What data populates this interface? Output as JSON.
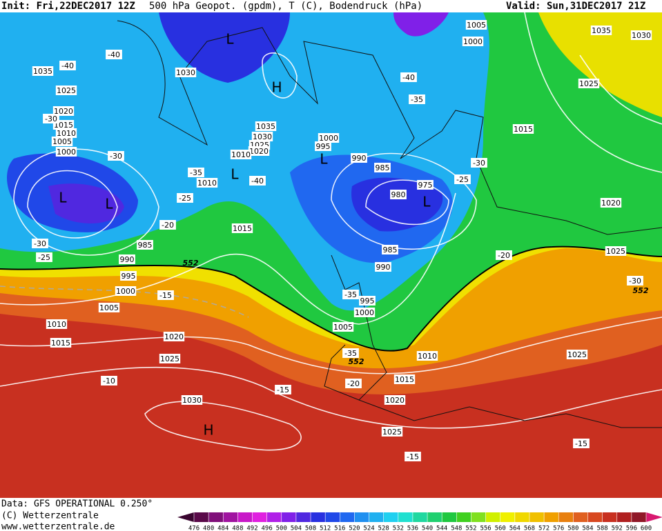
{
  "header": {
    "init": "Init: Fri,22DEC2017 12Z",
    "title": "500 hPa Geopot. (gpdm), T (C), Bodendruck (hPa)",
    "valid": "Valid: Sun,31DEC2017 21Z"
  },
  "footer": {
    "data": "Data: GFS OPERATIONAL 0.250°",
    "copyright": "(C) Wetterzentrale",
    "url": "www.wetterzentrale.de"
  },
  "map": {
    "isobar_labels": [
      1035,
      1025,
      1020,
      1015,
      1010,
      1005,
      1000,
      985,
      990,
      995,
      1000,
      1005,
      1010,
      1015,
      1020,
      1025,
      1030,
      1030,
      1035,
      1030,
      1025,
      1020,
      1010,
      1010,
      1015,
      1000,
      995,
      990,
      985,
      980,
      975,
      985,
      990,
      995,
      1000,
      1005,
      1010,
      1015,
      1020,
      1025,
      1005,
      1000,
      1015,
      1025,
      1035,
      1030,
      1020,
      1025,
      1025
    ],
    "temperature_labels": [
      -40,
      -40,
      -30,
      -30,
      -35,
      -40,
      -25,
      -20,
      -30,
      -25,
      -15,
      -10,
      -15,
      -40,
      -35,
      -30,
      -25,
      -20,
      -30,
      -35,
      -35,
      -20,
      -15,
      -15
    ],
    "contour_labels": [
      552,
      552,
      552
    ],
    "centers": [
      "L",
      "H",
      "L",
      "L",
      "L",
      "L",
      "L",
      "H"
    ]
  },
  "colorbar": {
    "ticks": [
      476,
      480,
      484,
      488,
      492,
      496,
      500,
      504,
      508,
      512,
      516,
      520,
      524,
      528,
      532,
      536,
      540,
      544,
      548,
      552,
      556,
      560,
      564,
      568,
      572,
      576,
      580,
      584,
      588,
      592,
      596,
      600
    ],
    "colors": [
      "#5a0a4a",
      "#80107a",
      "#a014a0",
      "#c818c8",
      "#e020e0",
      "#b020e8",
      "#8020e8",
      "#5028e0",
      "#2830e0",
      "#2048e8",
      "#2068f0",
      "#2090f0",
      "#20b0f0",
      "#20d0f0",
      "#20e0d0",
      "#20d8a0",
      "#20d070",
      "#20c840",
      "#40d020",
      "#80e020",
      "#d0f000",
      "#f0f000",
      "#f0d800",
      "#f0c000",
      "#f0a000",
      "#e88010",
      "#e06020",
      "#d84820",
      "#c83020",
      "#b02020",
      "#901828"
    ]
  }
}
